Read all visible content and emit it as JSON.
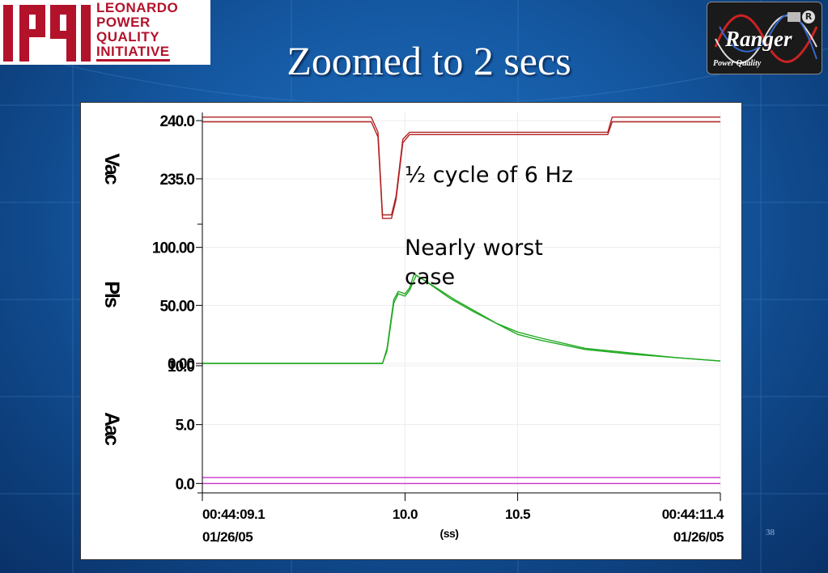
{
  "slide": {
    "title": "Zoomed to 2 secs",
    "page_number": "38"
  },
  "logos": {
    "lpqi_mark": "lpqi",
    "lpqi_lines": [
      "LEONARDO",
      "POWER",
      "QUALITY",
      "INITIATIVE"
    ],
    "ranger_brand": "Ranger",
    "ranger_tagline": "Power Quality",
    "ranger_reg": "R"
  },
  "annotations": {
    "half_cycle": "½ cycle of 6 Hz",
    "worst_case": "Nearly worst case"
  },
  "chart_data": {
    "type": "line",
    "x_range": [
      9.1,
      11.4
    ],
    "x_ticks": [
      {
        "value": 9.1,
        "label": "00:44:09.1",
        "date": "01/26/05"
      },
      {
        "value": 10.0,
        "label": "10.0"
      },
      {
        "value": 10.5,
        "label": "10.5"
      },
      {
        "value": 11.4,
        "label": "00:44:11.4",
        "date": "01/26/05"
      }
    ],
    "x_unit": "(ss)",
    "grid": true,
    "panels": [
      {
        "ylabel": "Vac",
        "ylim": [
          231.1,
          240.7
        ],
        "ticks": [
          {
            "value": 240.0,
            "label": "240.0"
          },
          {
            "value": 235.0,
            "label": "235.0"
          }
        ],
        "series": [
          {
            "color": "#b22222",
            "points": [
              [
                9.1,
                240.3
              ],
              [
                9.85,
                240.3
              ],
              [
                9.88,
                239.0
              ],
              [
                9.9,
                231.9
              ],
              [
                9.94,
                231.9
              ],
              [
                9.96,
                233.5
              ],
              [
                9.99,
                238.4
              ],
              [
                10.02,
                239.0
              ],
              [
                10.9,
                239.0
              ],
              [
                10.92,
                240.3
              ],
              [
                11.4,
                240.3
              ]
            ]
          },
          {
            "color": "#b22222",
            "points": [
              [
                9.1,
                239.9
              ],
              [
                9.85,
                239.9
              ],
              [
                9.88,
                238.6
              ],
              [
                9.9,
                231.6
              ],
              [
                9.94,
                231.6
              ],
              [
                9.96,
                233.2
              ],
              [
                9.99,
                238.1
              ],
              [
                10.02,
                238.8
              ],
              [
                10.9,
                238.8
              ],
              [
                10.92,
                239.9
              ],
              [
                11.4,
                239.9
              ]
            ]
          }
        ]
      },
      {
        "ylabel": "Pls",
        "ylim": [
          0,
          120
        ],
        "ticks": [
          {
            "value": 100.0,
            "label": "100.00"
          },
          {
            "value": 50.0,
            "label": "50.00"
          },
          {
            "value": 0.0,
            "label": "0.00"
          }
        ],
        "series": [
          {
            "color": "#22aa22",
            "points": [
              [
                9.1,
                0
              ],
              [
                9.9,
                0
              ],
              [
                9.92,
                13
              ],
              [
                9.95,
                55
              ],
              [
                9.97,
                62
              ],
              [
                10.0,
                60
              ],
              [
                10.02,
                65
              ],
              [
                10.04,
                77
              ],
              [
                10.09,
                71
              ],
              [
                10.2,
                56
              ],
              [
                10.3,
                45
              ],
              [
                10.4,
                35
              ],
              [
                10.5,
                27
              ],
              [
                10.6,
                22
              ],
              [
                10.8,
                13
              ],
              [
                11.0,
                9
              ],
              [
                11.2,
                5
              ],
              [
                11.4,
                2
              ]
            ]
          },
          {
            "color": "#22aa22",
            "points": [
              [
                9.1,
                0
              ],
              [
                9.9,
                0
              ],
              [
                9.92,
                11
              ],
              [
                9.95,
                52
              ],
              [
                9.97,
                60
              ],
              [
                10.0,
                58
              ],
              [
                10.02,
                63
              ],
              [
                10.05,
                76
              ],
              [
                10.1,
                70
              ],
              [
                10.22,
                55
              ],
              [
                10.32,
                44
              ],
              [
                10.42,
                33
              ],
              [
                10.5,
                25
              ],
              [
                10.6,
                20
              ],
              [
                10.8,
                12
              ],
              [
                11.0,
                8
              ],
              [
                11.2,
                5
              ],
              [
                11.4,
                2
              ]
            ]
          }
        ]
      },
      {
        "ylabel": "Aac",
        "ylim": [
          -0.8,
          10.2
        ],
        "ticks": [
          {
            "value": 10.0,
            "label": "10.0"
          },
          {
            "value": 5.0,
            "label": "5.0"
          },
          {
            "value": 0.0,
            "label": "0.0"
          }
        ],
        "series": [
          {
            "color": "#cc33cc",
            "points": [
              [
                9.1,
                0.5
              ],
              [
                11.4,
                0.5
              ]
            ]
          },
          {
            "color": "#cc33cc",
            "points": [
              [
                9.1,
                0.0
              ],
              [
                11.4,
                0.0
              ]
            ]
          }
        ]
      }
    ]
  }
}
